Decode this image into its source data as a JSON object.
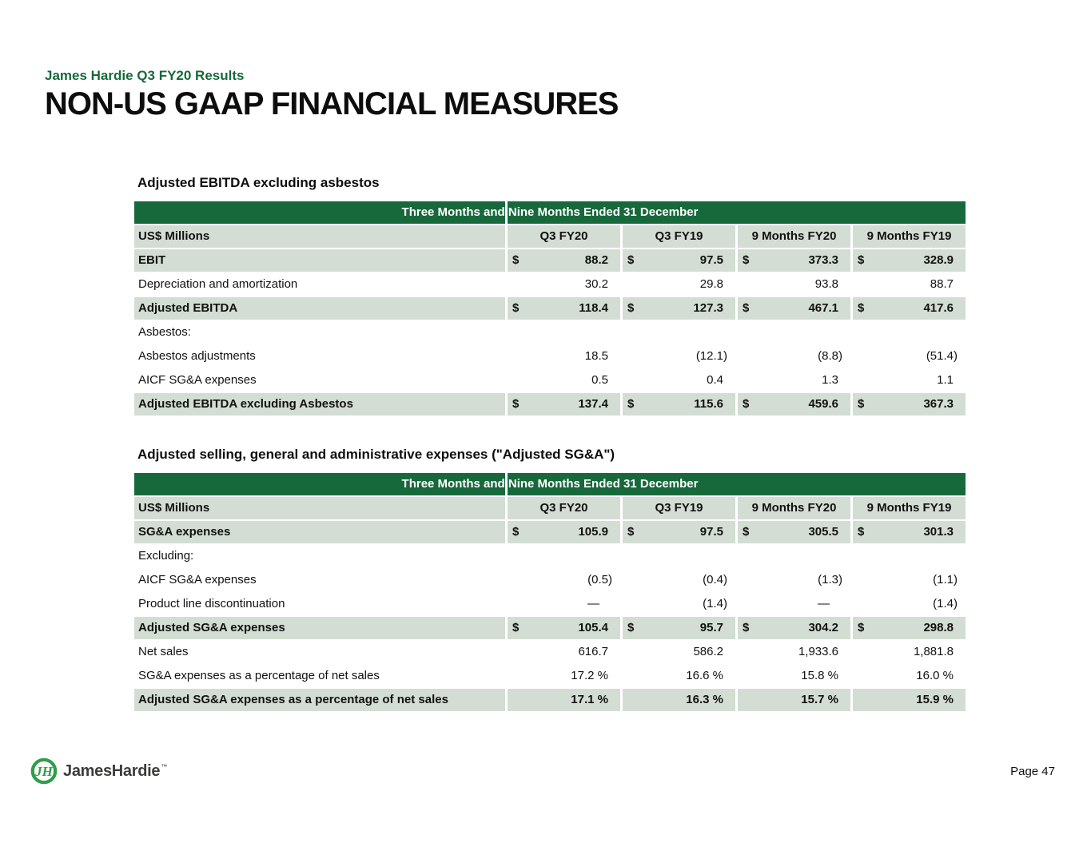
{
  "header": {
    "eyebrow": "James Hardie Q3 FY20 Results",
    "title": "NON-US GAAP FINANCIAL MEASURES"
  },
  "colors": {
    "banner_green": "#17693C",
    "shaded_row_green": "#D3DDD3",
    "eyebrow_green": "#17693C",
    "logo_green": "#2E9E4A",
    "wordmark_gray": "#3C3C3A"
  },
  "tables": [
    {
      "title": "Adjusted EBITDA excluding asbestos",
      "banner": "Three Months and Nine Months Ended 31 December",
      "unit_label": "US$ Millions",
      "columns": [
        "Q3 FY20",
        "Q3 FY19",
        "9 Months FY20",
        "9 Months FY19"
      ],
      "rows": [
        {
          "label": "EBIT",
          "bold": true,
          "shaded": true,
          "dollar": true,
          "values": [
            "88.2",
            "97.5",
            "373.3",
            "328.9"
          ]
        },
        {
          "label": "Depreciation and amortization",
          "bold": false,
          "shaded": false,
          "dollar": false,
          "values": [
            "30.2",
            "29.8",
            "93.8",
            "88.7"
          ]
        },
        {
          "label": "Adjusted EBITDA",
          "bold": true,
          "shaded": true,
          "dollar": true,
          "values": [
            "118.4",
            "127.3",
            "467.1",
            "417.6"
          ]
        },
        {
          "label": "Asbestos:",
          "bold": false,
          "shaded": false,
          "dollar": false,
          "values": [
            "",
            "",
            "",
            ""
          ]
        },
        {
          "label": "Asbestos adjustments",
          "bold": false,
          "shaded": false,
          "dollar": false,
          "values": [
            "18.5",
            "(12.1)",
            "(8.8)",
            "(51.4)"
          ]
        },
        {
          "label": "AICF SG&A expenses",
          "bold": false,
          "shaded": false,
          "dollar": false,
          "values": [
            "0.5",
            "0.4",
            "1.3",
            "1.1"
          ]
        },
        {
          "label": "Adjusted EBITDA excluding Asbestos",
          "bold": true,
          "shaded": true,
          "dollar": true,
          "values": [
            "137.4",
            "115.6",
            "459.6",
            "367.3"
          ]
        }
      ]
    },
    {
      "title": "Adjusted selling, general and administrative expenses (\"Adjusted SG&A\")",
      "banner": "Three Months and Nine Months Ended 31 December",
      "unit_label": "US$ Millions",
      "columns": [
        "Q3 FY20",
        "Q3 FY19",
        "9 Months FY20",
        "9 Months FY19"
      ],
      "rows": [
        {
          "label": "SG&A expenses",
          "bold": true,
          "shaded": true,
          "dollar": true,
          "values": [
            "105.9",
            "97.5",
            "305.5",
            "301.3"
          ]
        },
        {
          "label": "Excluding:",
          "bold": false,
          "shaded": false,
          "dollar": false,
          "values": [
            "",
            "",
            "",
            ""
          ]
        },
        {
          "label": "AICF SG&A expenses",
          "bold": false,
          "shaded": false,
          "dollar": false,
          "values": [
            "(0.5)",
            "(0.4)",
            "(1.3)",
            "(1.1)"
          ]
        },
        {
          "label": "Product line discontinuation",
          "bold": false,
          "shaded": false,
          "dollar": false,
          "values": [
            "—",
            "(1.4)",
            "—",
            "(1.4)"
          ]
        },
        {
          "label": "Adjusted SG&A expenses",
          "bold": true,
          "shaded": true,
          "dollar": true,
          "values": [
            "105.4",
            "95.7",
            "304.2",
            "298.8"
          ]
        },
        {
          "label": "Net sales",
          "bold": false,
          "shaded": false,
          "dollar": false,
          "values": [
            "616.7",
            "586.2",
            "1,933.6",
            "1,881.8"
          ]
        },
        {
          "label": "SG&A expenses as a percentage of net sales",
          "bold": false,
          "shaded": false,
          "dollar": false,
          "values": [
            "17.2 %",
            "16.6 %",
            "15.8 %",
            "16.0 %"
          ]
        },
        {
          "label": "Adjusted SG&A expenses as a percentage of net sales",
          "bold": true,
          "shaded": true,
          "dollar": false,
          "values": [
            "17.1 %",
            "16.3 %",
            "15.7 %",
            "15.9 %"
          ]
        }
      ]
    }
  ],
  "footer": {
    "logo_monogram": "JH",
    "logo_wordmark": "JamesHardie",
    "logo_tm": "™",
    "page_label": "Page 47"
  }
}
